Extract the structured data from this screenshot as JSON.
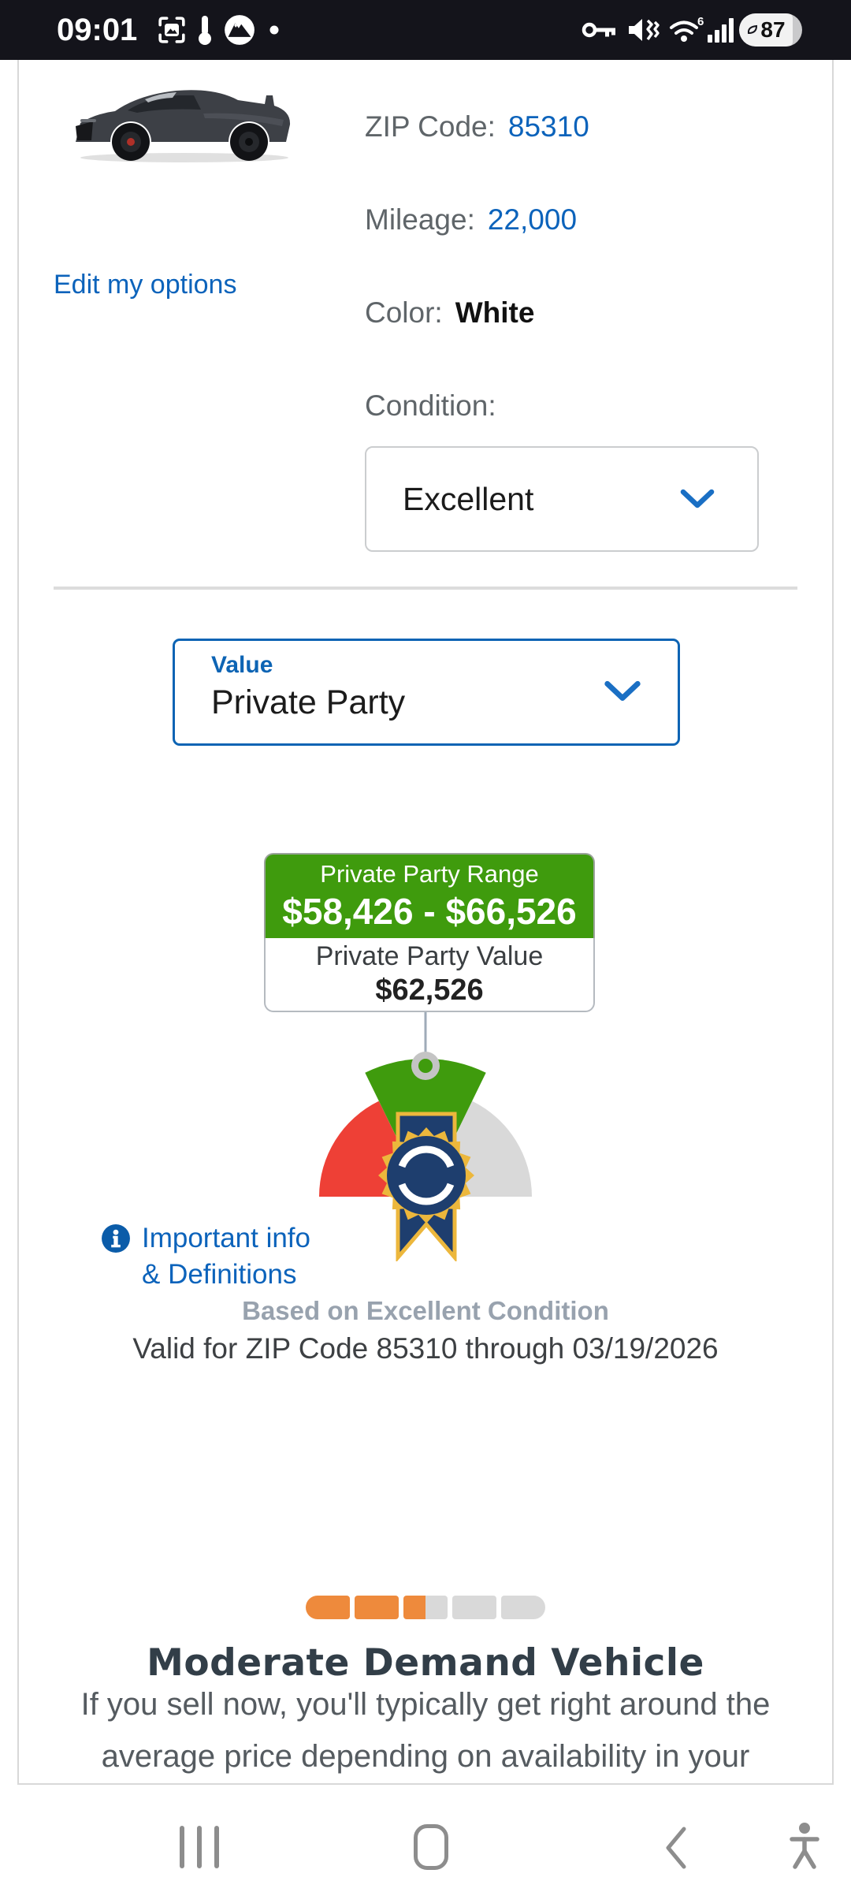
{
  "status_bar": {
    "time": "09:01",
    "battery_percent": "87",
    "wifi_standard": "6",
    "left_icons": [
      "screenshot-icon",
      "thermometer-icon",
      "vpn-mountain-icon",
      "notification-dot-icon"
    ],
    "right_icons": [
      "key-icon",
      "mute-vibrate-icon",
      "wifi6-icon",
      "signal-strength-icon",
      "battery-icon"
    ]
  },
  "vehicle_panel": {
    "edit_link": "Edit my options",
    "zip_label": "ZIP Code:",
    "zip_value": "85310",
    "mileage_label": "Mileage:",
    "mileage_value": "22,000",
    "color_label": "Color:",
    "color_value": "White",
    "condition_label": "Condition:",
    "condition_value": "Excellent"
  },
  "value_selector": {
    "label": "Value",
    "selected_option": "Private Party"
  },
  "price_advisor": {
    "range_label": "Private Party Range",
    "range_value": "$58,426 - $66,526",
    "value_label": "Private Party Value",
    "value_amount": "$62,526",
    "info_link_line1": "Important info",
    "info_link_line2": "& Definitions",
    "based_on": "Based on Excellent Condition",
    "valid_through": "Valid for ZIP Code 85310 through 03/19/2026"
  },
  "demand": {
    "title": "Moderate Demand Vehicle",
    "description_line1": "If you sell now, you'll typically get right around the",
    "description_line2": "average price depending on availability in your",
    "meter": {
      "segments": [
        "full",
        "full",
        "half",
        "empty",
        "empty"
      ]
    }
  },
  "nav_bar": {
    "buttons": [
      "recents",
      "home",
      "back",
      "accessibility"
    ]
  },
  "colors": {
    "statusbar_bg": "#14141b",
    "link_blue": "#0c63bb",
    "accent_blue": "#0d64b4",
    "label_gray": "#5f6569",
    "green": "#3f9b0d",
    "red": "#ee4036",
    "light_gray": "#d9d9d9",
    "navy": "#1e3e6e",
    "gold": "#ecb73c",
    "orange": "#ee8a3c",
    "title_navy": "#323e48",
    "body_gray": "#555b60",
    "muted_gray_blue": "#98a2ae",
    "valid_text": "#3d4043",
    "nav_gray": "#8d8d8d",
    "border_gray": "#d8d8d8",
    "connector_gray": "#9fabb8"
  }
}
